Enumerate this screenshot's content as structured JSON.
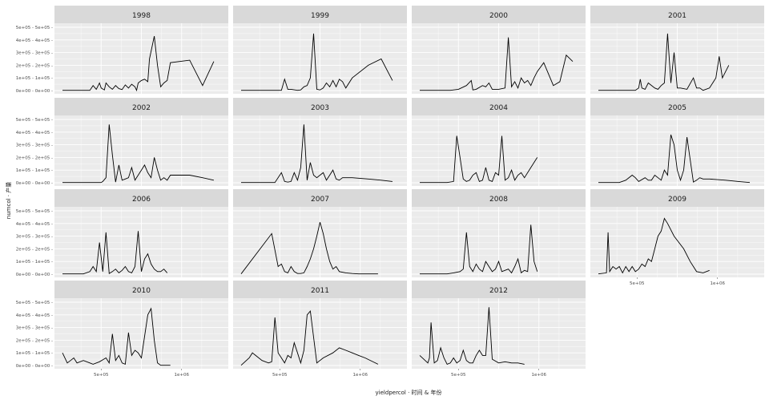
{
  "chart_data": {
    "type": "line",
    "xlabel": "yieldpercol · 时间 & 年份",
    "ylabel": "numcol · 产量",
    "ylim": [
      0,
      500000
    ],
    "y_ticks": [
      {
        "value": 0,
        "label": "0e+00 - 0e+00 -"
      },
      {
        "value": 100000,
        "label": "1e+05 - 1e+05 -"
      },
      {
        "value": 200000,
        "label": "2e+05 - 2e+05 -"
      },
      {
        "value": 300000,
        "label": "3e+05 - 3e+05 -"
      },
      {
        "value": 400000,
        "label": "4e+05 - 4e+05 -"
      },
      {
        "value": 500000,
        "label": "5e+05 - 5e+05 -"
      }
    ],
    "xlim": [
      0,
      100
    ],
    "x_ticks": [
      {
        "value": 25,
        "label": "5e+05"
      },
      {
        "value": 75,
        "label": "1e+06"
      }
    ],
    "grid": true,
    "panels": [
      {
        "title": "1998",
        "x": [
          1,
          12,
          18,
          20,
          22,
          24,
          25,
          27,
          28,
          30,
          32,
          34,
          36,
          38,
          40,
          42,
          44,
          46,
          47,
          48,
          50,
          52,
          54,
          55,
          58,
          60,
          62,
          64,
          66,
          68,
          80,
          88,
          95
        ],
        "y": [
          2,
          2,
          2,
          40,
          10,
          60,
          20,
          5,
          60,
          30,
          10,
          40,
          15,
          8,
          45,
          20,
          50,
          30,
          2,
          60,
          80,
          90,
          70,
          250,
          430,
          200,
          30,
          60,
          80,
          220,
          240,
          40,
          230
        ]
      },
      {
        "title": "1999",
        "x": [
          1,
          10,
          20,
          25,
          26,
          28,
          30,
          32,
          36,
          38,
          40,
          42,
          44,
          46,
          48,
          50,
          52,
          54,
          56,
          58,
          60,
          62,
          64,
          66,
          70,
          80,
          88,
          95
        ],
        "y": [
          2,
          2,
          2,
          2,
          2,
          90,
          10,
          10,
          2,
          5,
          30,
          40,
          100,
          450,
          10,
          5,
          20,
          60,
          30,
          80,
          30,
          90,
          70,
          20,
          100,
          200,
          250,
          80
        ]
      },
      {
        "title": "2000",
        "x": [
          1,
          20,
          25,
          30,
          33,
          34,
          36,
          40,
          42,
          44,
          46,
          50,
          54,
          56,
          58,
          60,
          62,
          64,
          66,
          68,
          70,
          72,
          74,
          78,
          84,
          88,
          92,
          96
        ],
        "y": [
          2,
          2,
          10,
          40,
          80,
          5,
          10,
          40,
          30,
          60,
          10,
          10,
          20,
          420,
          30,
          70,
          20,
          100,
          60,
          80,
          40,
          100,
          150,
          220,
          40,
          70,
          280,
          230
        ]
      },
      {
        "title": "2001",
        "x": [
          1,
          12,
          18,
          24,
          26,
          27,
          28,
          30,
          32,
          36,
          38,
          40,
          42,
          44,
          46,
          48,
          50,
          52,
          56,
          60,
          62,
          64,
          66,
          70,
          74,
          76,
          78,
          82
        ],
        "y": [
          2,
          2,
          2,
          2,
          20,
          90,
          20,
          10,
          60,
          20,
          10,
          40,
          60,
          450,
          60,
          300,
          20,
          20,
          10,
          100,
          20,
          20,
          2,
          20,
          100,
          270,
          100,
          200
        ]
      },
      {
        "title": "2002",
        "x": [
          1,
          22,
          25,
          26,
          28,
          30,
          32,
          34,
          36,
          38,
          40,
          42,
          44,
          46,
          50,
          52,
          54,
          56,
          58,
          60,
          62,
          64,
          66,
          68,
          72,
          80,
          88,
          95
        ],
        "y": [
          2,
          2,
          2,
          10,
          40,
          460,
          220,
          5,
          140,
          20,
          30,
          40,
          120,
          20,
          100,
          140,
          80,
          40,
          200,
          100,
          20,
          40,
          20,
          60,
          60,
          60,
          40,
          20
        ]
      },
      {
        "title": "2003",
        "x": [
          1,
          14,
          18,
          22,
          26,
          28,
          30,
          32,
          34,
          36,
          38,
          40,
          42,
          44,
          46,
          48,
          50,
          52,
          54,
          56,
          58,
          60,
          62,
          64,
          70,
          80,
          88,
          95
        ],
        "y": [
          2,
          2,
          2,
          2,
          80,
          10,
          5,
          10,
          80,
          20,
          120,
          460,
          20,
          160,
          60,
          40,
          60,
          80,
          20,
          60,
          100,
          30,
          20,
          40,
          40,
          30,
          20,
          10
        ]
      },
      {
        "title": "2004",
        "x": [
          1,
          14,
          18,
          22,
          24,
          26,
          28,
          30,
          32,
          34,
          36,
          38,
          40,
          42,
          44,
          46,
          48,
          50,
          52,
          54,
          56,
          58,
          60,
          62,
          64,
          66,
          70,
          74
        ],
        "y": [
          2,
          2,
          2,
          10,
          370,
          200,
          30,
          10,
          20,
          60,
          80,
          10,
          20,
          120,
          20,
          10,
          80,
          60,
          370,
          20,
          40,
          100,
          20,
          60,
          80,
          40,
          120,
          200
        ]
      },
      {
        "title": "2005",
        "x": [
          1,
          14,
          18,
          22,
          24,
          26,
          30,
          32,
          34,
          36,
          38,
          40,
          42,
          44,
          46,
          48,
          50,
          52,
          54,
          56,
          60,
          62,
          64,
          66,
          70,
          80,
          88,
          95
        ],
        "y": [
          2,
          2,
          20,
          60,
          40,
          10,
          40,
          20,
          20,
          60,
          40,
          20,
          100,
          60,
          380,
          300,
          100,
          20,
          100,
          360,
          5,
          20,
          40,
          30,
          30,
          20,
          10,
          2
        ]
      },
      {
        "title": "2006",
        "x": [
          1,
          10,
          14,
          18,
          20,
          22,
          24,
          26,
          28,
          30,
          32,
          34,
          36,
          38,
          40,
          42,
          44,
          46,
          48,
          50,
          52,
          54,
          56,
          58,
          60,
          62,
          64,
          66
        ],
        "y": [
          2,
          2,
          2,
          20,
          60,
          20,
          250,
          20,
          330,
          5,
          20,
          40,
          10,
          30,
          60,
          20,
          10,
          60,
          340,
          20,
          120,
          160,
          80,
          40,
          20,
          20,
          40,
          10
        ]
      },
      {
        "title": "2007",
        "x": [
          1,
          20,
          24,
          26,
          28,
          30,
          32,
          34,
          36,
          38,
          40,
          42,
          44,
          46,
          48,
          50,
          52,
          54,
          56,
          58,
          60,
          62,
          66,
          70,
          74,
          78,
          82,
          86
        ],
        "y": [
          2,
          320,
          60,
          80,
          20,
          10,
          60,
          20,
          5,
          5,
          10,
          60,
          120,
          200,
          300,
          410,
          320,
          200,
          100,
          40,
          60,
          20,
          10,
          5,
          2,
          2,
          2,
          2
        ]
      },
      {
        "title": "2008",
        "x": [
          1,
          14,
          18,
          22,
          26,
          28,
          30,
          32,
          34,
          36,
          38,
          40,
          42,
          44,
          46,
          48,
          50,
          52,
          56,
          58,
          60,
          62,
          64,
          66,
          68,
          70,
          72,
          74
        ],
        "y": [
          2,
          2,
          2,
          10,
          20,
          40,
          330,
          60,
          20,
          80,
          40,
          20,
          100,
          60,
          20,
          40,
          100,
          20,
          40,
          10,
          60,
          120,
          10,
          30,
          20,
          390,
          100,
          20
        ]
      },
      {
        "title": "2009",
        "x": [
          1,
          6,
          7,
          8,
          10,
          12,
          14,
          16,
          18,
          20,
          22,
          24,
          26,
          28,
          30,
          32,
          34,
          36,
          38,
          40,
          42,
          44,
          48,
          54,
          58,
          62,
          66,
          70
        ],
        "y": [
          2,
          10,
          330,
          20,
          60,
          40,
          60,
          10,
          60,
          20,
          60,
          20,
          40,
          80,
          60,
          120,
          100,
          200,
          300,
          340,
          440,
          400,
          300,
          200,
          100,
          20,
          10,
          30
        ]
      },
      {
        "title": "2010",
        "x": [
          1,
          4,
          6,
          8,
          10,
          14,
          18,
          20,
          24,
          28,
          30,
          32,
          34,
          36,
          38,
          40,
          42,
          44,
          46,
          48,
          50,
          54,
          56,
          58,
          60,
          62,
          64,
          68
        ],
        "y": [
          100,
          20,
          40,
          60,
          20,
          40,
          20,
          10,
          30,
          60,
          20,
          250,
          40,
          80,
          20,
          10,
          260,
          80,
          120,
          100,
          60,
          400,
          450,
          200,
          20,
          2,
          2,
          2
        ]
      },
      {
        "title": "2011",
        "x": [
          1,
          6,
          8,
          10,
          14,
          18,
          20,
          22,
          24,
          26,
          28,
          30,
          32,
          34,
          36,
          38,
          40,
          42,
          44,
          48,
          52,
          58,
          62,
          66,
          70,
          74,
          78,
          86
        ],
        "y": [
          2,
          60,
          100,
          80,
          40,
          20,
          30,
          380,
          100,
          60,
          20,
          80,
          60,
          180,
          100,
          20,
          120,
          400,
          430,
          20,
          60,
          100,
          140,
          120,
          100,
          80,
          60,
          10
        ]
      },
      {
        "title": "2012",
        "x": [
          1,
          6,
          7,
          8,
          10,
          12,
          14,
          16,
          18,
          20,
          22,
          24,
          26,
          28,
          30,
          32,
          34,
          36,
          38,
          40,
          42,
          44,
          46,
          50,
          54,
          58,
          62,
          66
        ],
        "y": [
          80,
          20,
          60,
          340,
          20,
          40,
          140,
          60,
          10,
          20,
          60,
          20,
          40,
          120,
          40,
          20,
          20,
          80,
          120,
          80,
          80,
          460,
          50,
          20,
          30,
          20,
          20,
          10
        ]
      }
    ]
  }
}
